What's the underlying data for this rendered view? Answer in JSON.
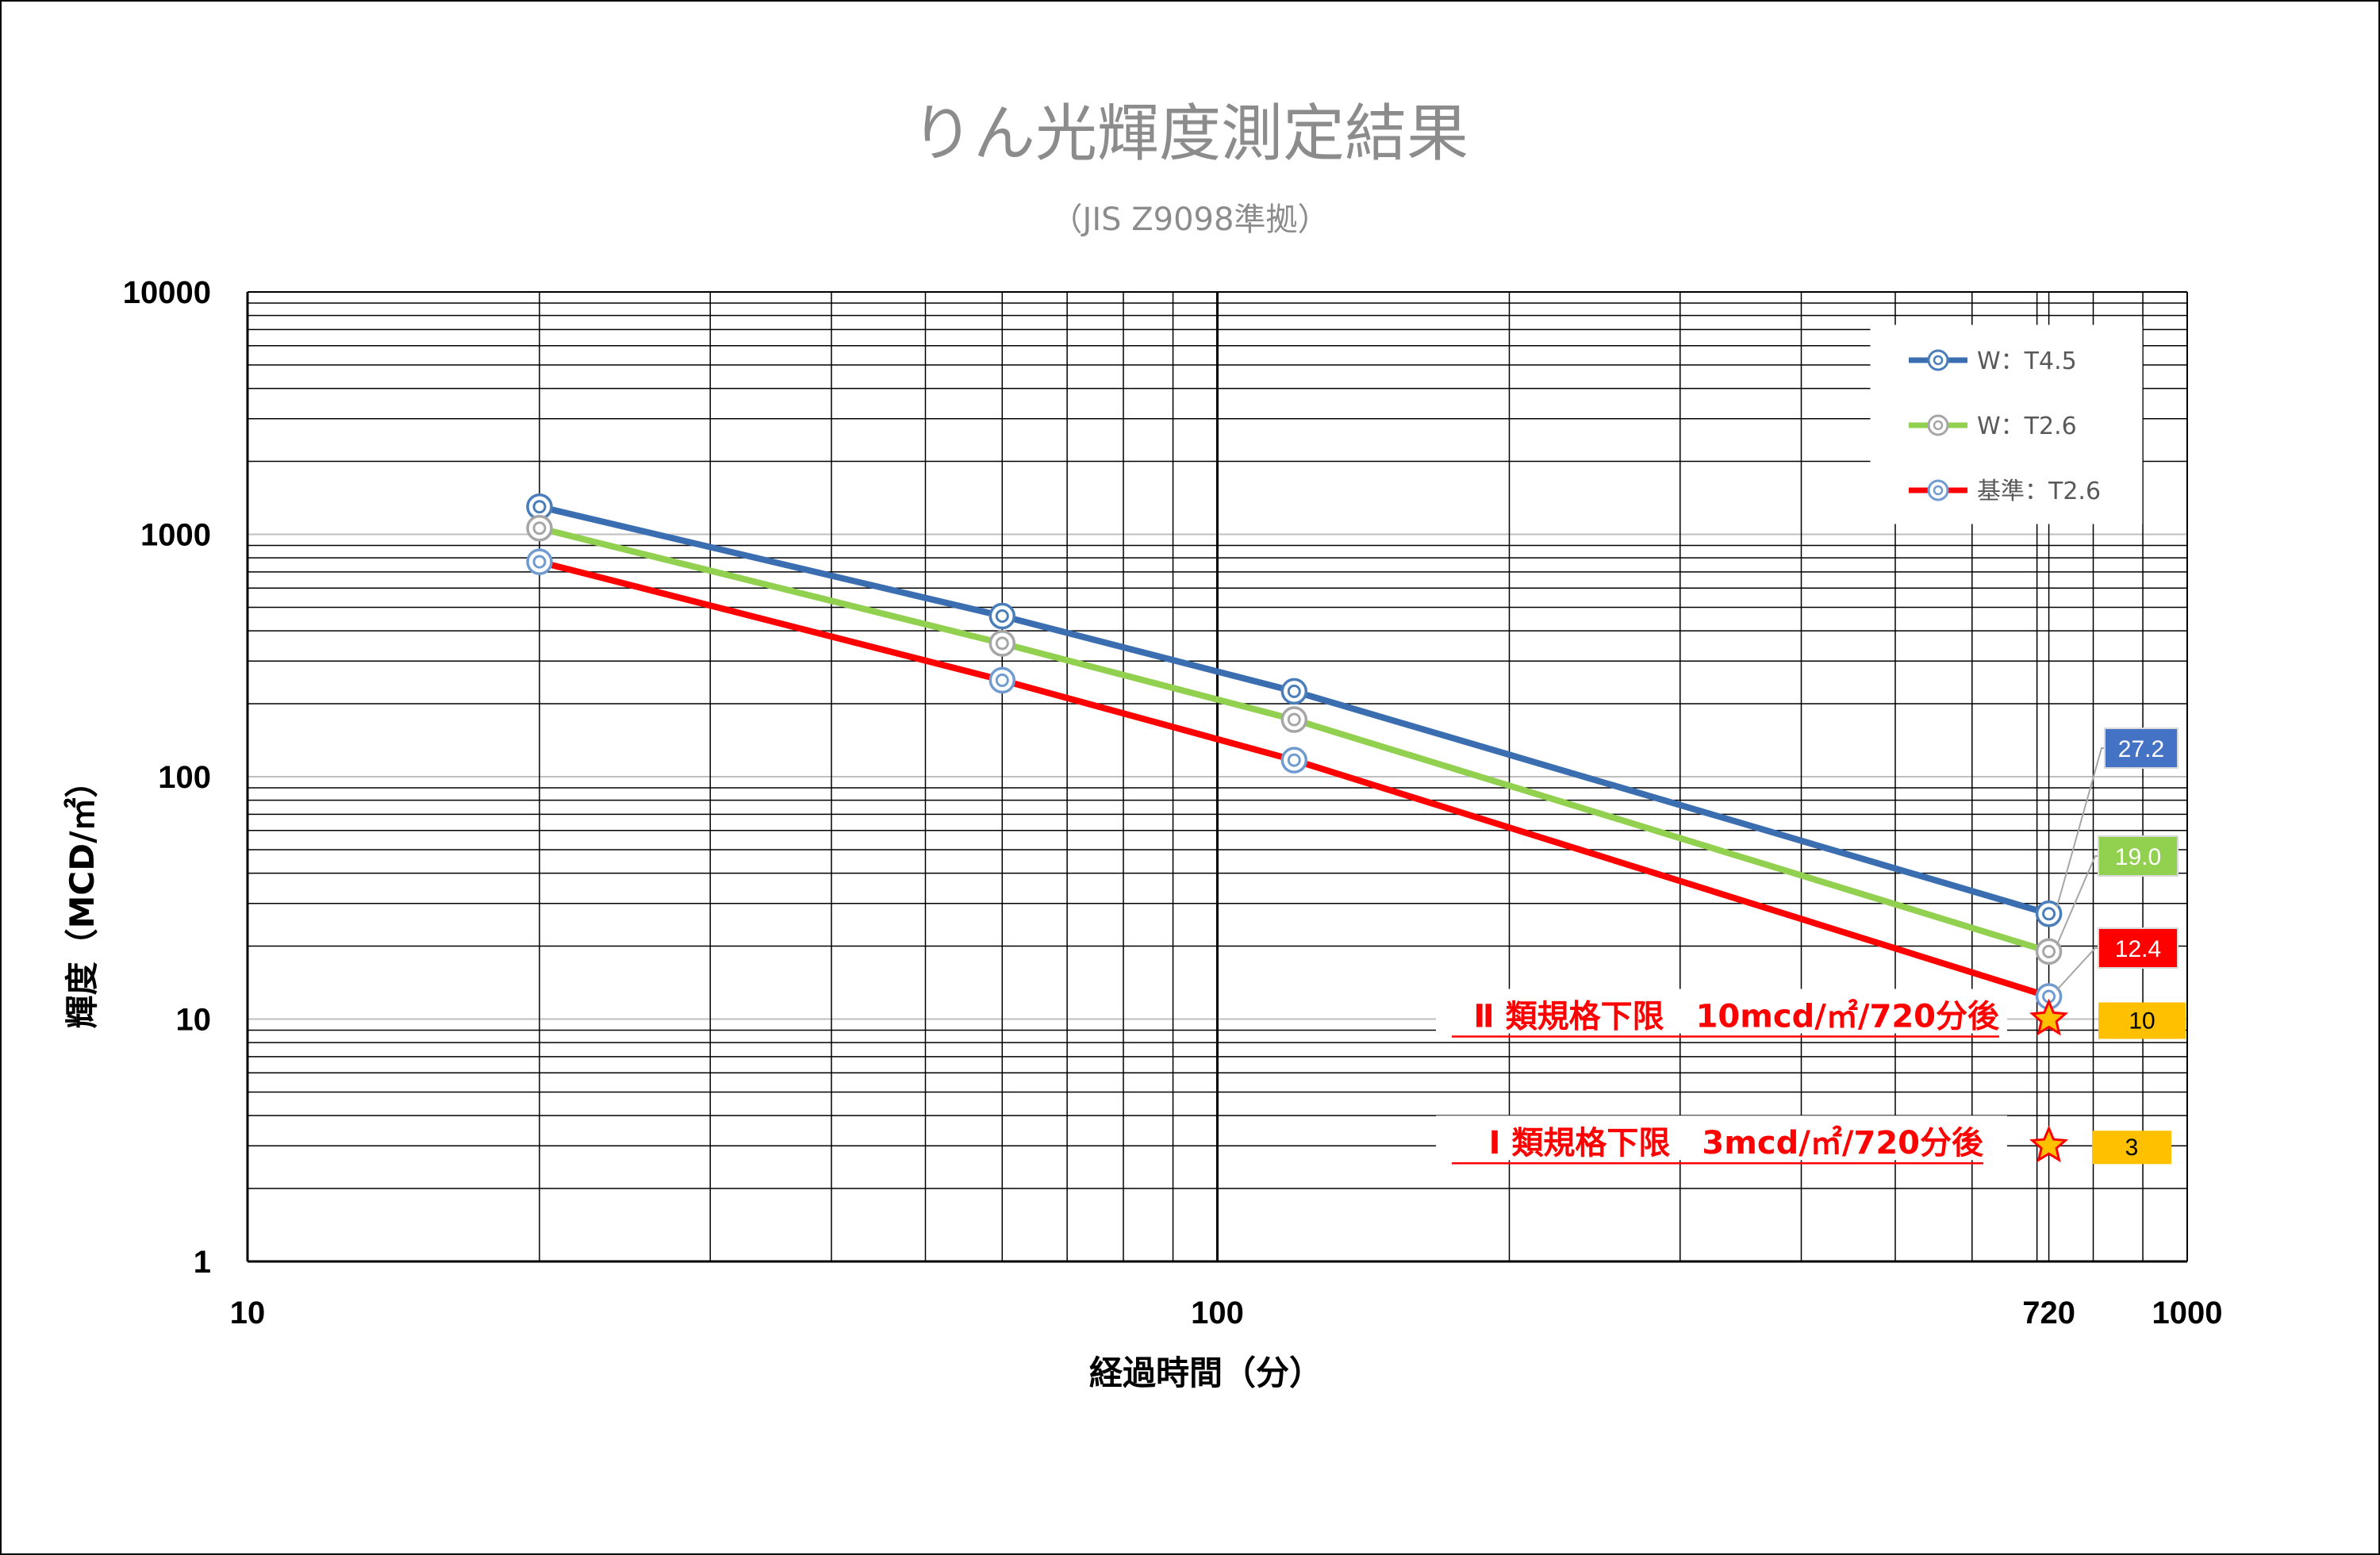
{
  "chart_data": {
    "type": "line",
    "title": "りん光輝度測定結果",
    "subtitle": "（JIS  Z9098準拠）",
    "xlabel": "経過時間（分）",
    "ylabel": "輝度（MCD/㎡）",
    "x_scale": "log",
    "y_scale": "log",
    "xlim": [
      10,
      1000
    ],
    "ylim": [
      1,
      10000
    ],
    "x_ticks": [
      "10",
      "100",
      "720",
      "1000"
    ],
    "y_ticks": [
      "1",
      "10",
      "100",
      "1000",
      "10000"
    ],
    "grid": true,
    "legend_position": "top-right",
    "series": [
      {
        "name": "W：T4.5",
        "color": "#3a6eb0",
        "marker_color": "#4a7ebb",
        "x": [
          20,
          60,
          120,
          720
        ],
        "values": [
          1300,
          460,
          225,
          27.2
        ]
      },
      {
        "name": "W：T2.6",
        "color": "#92d050",
        "marker_color": "#a6a6a6",
        "x": [
          20,
          60,
          120,
          720
        ],
        "values": [
          1060,
          355,
          172,
          19.0
        ]
      },
      {
        "name": "基準：T2.6",
        "color": "#ff0000",
        "marker_color": "#6f9bd1",
        "x": [
          20,
          60,
          120,
          720
        ],
        "values": [
          770,
          250,
          117,
          12.4
        ]
      }
    ],
    "end_labels": [
      {
        "text": "27.2",
        "bg": "#4472c4",
        "fg": "#ffffff"
      },
      {
        "text": "19.0",
        "bg": "#92d050",
        "fg": "#ffffff"
      },
      {
        "text": "12.4",
        "bg": "#ff0000",
        "fg": "#ffffff"
      }
    ],
    "standards": [
      {
        "label": "Ⅱ 類規格下限　10mcd/㎡/720分後",
        "x": 720,
        "value": 10,
        "box_text": "10",
        "box_color": "#ffc000"
      },
      {
        "label": "Ⅰ 類規格下限　3mcd/㎡/720分後",
        "x": 720,
        "value": 3,
        "box_text": "3",
        "box_color": "#ffc000"
      }
    ]
  }
}
